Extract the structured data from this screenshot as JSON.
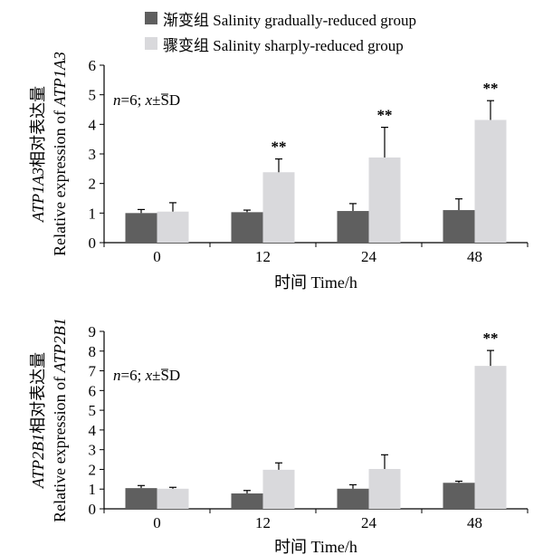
{
  "legend": {
    "items": [
      {
        "label": "渐变组 Salinity gradually-reduced group",
        "color": "#5f5f5f"
      },
      {
        "label": "骤变组 Salinity sharply-reduced group",
        "color": "#d9d9dc"
      }
    ]
  },
  "chart_data": [
    {
      "type": "bar",
      "categories": [
        "0",
        "12",
        "24",
        "48"
      ],
      "series": [
        {
          "name": "渐变组 Salinity gradually-reduced group",
          "values": [
            1.0,
            1.03,
            1.07,
            1.1
          ],
          "errors": [
            0.12,
            0.07,
            0.25,
            0.38
          ],
          "color": "#5f5f5f"
        },
        {
          "name": "骤变组 Salinity sharply-reduced group",
          "values": [
            1.05,
            2.38,
            2.88,
            4.15
          ],
          "errors": [
            0.3,
            0.45,
            1.02,
            0.65
          ],
          "color": "#d9d9dc"
        }
      ],
      "significance": [
        "",
        "**",
        "**",
        "**"
      ],
      "annotation": {
        "n": "n",
        "rest": "=6; ",
        "xbar": "x",
        "sd": "±SD"
      },
      "xlabel": "时间 Time/h",
      "ylabel_line1_italic": "ATP1A3",
      "ylabel_line1_rest": "相对表达量",
      "ylabel_line2_rest": "Relative expression of ",
      "ylabel_line2_italic": "ATP1A3",
      "ylim": [
        0,
        6
      ],
      "yticks": [
        0,
        1,
        2,
        3,
        4,
        5,
        6
      ],
      "grid": false
    },
    {
      "type": "bar",
      "categories": [
        "0",
        "12",
        "24",
        "48"
      ],
      "series": [
        {
          "name": "渐变组 Salinity gradually-reduced group",
          "values": [
            1.05,
            0.78,
            1.02,
            1.32
          ],
          "errors": [
            0.13,
            0.15,
            0.2,
            0.08
          ],
          "color": "#5f5f5f"
        },
        {
          "name": "骤变组 Salinity sharply-reduced group",
          "values": [
            1.02,
            1.98,
            2.02,
            7.25
          ],
          "errors": [
            0.07,
            0.35,
            0.72,
            0.78
          ],
          "color": "#d9d9dc"
        }
      ],
      "significance": [
        "",
        "",
        "",
        "**"
      ],
      "annotation": {
        "n": "n",
        "rest": "=6; ",
        "xbar": "x",
        "sd": "±SD"
      },
      "xlabel": "时间 Time/h",
      "ylabel_line1_italic": "ATP2B1",
      "ylabel_line1_rest": "相对表达量",
      "ylabel_line2_rest": "Relative expression of ",
      "ylabel_line2_italic": "ATP2B1",
      "ylim": [
        0,
        9
      ],
      "yticks": [
        0,
        1,
        2,
        3,
        4,
        5,
        6,
        7,
        8,
        9
      ],
      "grid": false
    }
  ]
}
